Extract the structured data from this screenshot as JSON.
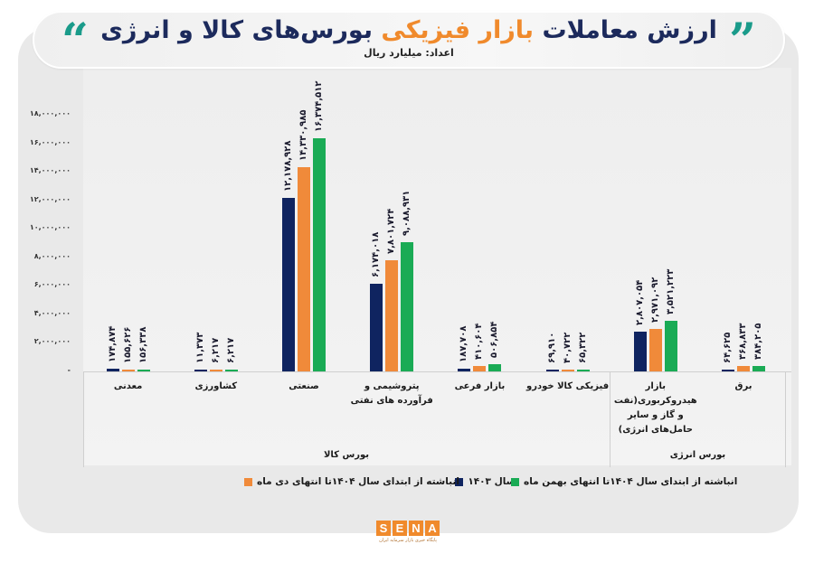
{
  "header": {
    "title_part1": "ارزش معاملات ",
    "title_highlight": "بازار فیزیکی",
    "title_part2": " بورس‌های کالا و انرژی",
    "subtitle": "اعداد: میلیارد ریال",
    "quote_open": "“",
    "quote_close": "”"
  },
  "colors": {
    "series_1403": "#0f2460",
    "series_dey": "#f08a3a",
    "series_bahman": "#1aab55",
    "title": "#1c2a5c",
    "highlight": "#f08a2c",
    "quote": "#1a9b8a"
  },
  "logo": {
    "letters": [
      "S",
      "E",
      "N",
      "A"
    ],
    "tagline": "پایگاه خبری بازار سرمایه ایران"
  },
  "chart_data": {
    "type": "bar",
    "title": "ارزش معاملات بازار فیزیکی بورس‌های کالا و انرژی",
    "subtitle": "اعداد: میلیارد ریال",
    "xlabel": "",
    "ylabel": "میلیارد ریال",
    "ylim": [
      0,
      18000000
    ],
    "yticks": [
      "-",
      "۲,۰۰۰,۰۰۰",
      "۴,۰۰۰,۰۰۰",
      "۶,۰۰۰,۰۰۰",
      "۸,۰۰۰,۰۰۰",
      "۱۰,۰۰۰,۰۰۰",
      "۱۲,۰۰۰,۰۰۰",
      "۱۴,۰۰۰,۰۰۰",
      "۱۶,۰۰۰,۰۰۰",
      "۱۸,۰۰۰,۰۰۰"
    ],
    "grid": false,
    "legend_position": "bottom",
    "categories": [
      "معدنی",
      "کشاورزی",
      "صنعتی",
      "پتروشیمی و فرآورده های نفتی",
      "بازار فرعی",
      "فیزیکی کالا خودرو",
      "بازار هیدروکربوری(نفت و گاز و سایر حامل‌های انرژی)",
      "برق"
    ],
    "category_groups": [
      {
        "name": "بورس کالا",
        "categories": [
          "معدنی",
          "کشاورزی",
          "صنعتی",
          "پتروشیمی و فرآورده های نفتی",
          "بازار فرعی",
          "فیزیکی کالا خودرو"
        ]
      },
      {
        "name": "بورس انرژی",
        "categories": [
          "بازار هیدروکربوری(نفت و گاز و سایر حامل‌های انرژی)",
          "برق"
        ]
      }
    ],
    "series": [
      {
        "name": "سال ۱۴۰۳",
        "color": "#0f2460",
        "values": [
          174874,
          11373,
          12178928,
          6174018,
          187708,
          69910,
          2807054,
          64625
        ],
        "labels": [
          "۱۷۴,۸۷۴",
          "۱۱,۳۷۳",
          "۱۲,۱۷۸,۹۲۸",
          "۶,۱۷۴,۰۱۸",
          "۱۸۷,۷۰۸",
          "۶۹,۹۱۰",
          "۲,۸۰۷,۰۵۴",
          "۶۴,۶۲۵"
        ]
      },
      {
        "name": "انباشته از ابتدای سال ۱۴۰۴تا انتهای دی ماه",
        "color": "#f08a3a",
        "values": [
          155626,
          6217,
          14330985,
          7801724,
          410604,
          40722,
          2971092,
          368833
        ],
        "labels": [
          "۱۵۵,۶۲۶",
          "۶,۲۱۷",
          "۱۴,۳۳۰,۹۸۵",
          "۷,۸۰۱,۷۲۴",
          "۴۱۰,۶۰۴",
          "۴۰,۷۲۲",
          "۲,۹۷۱,۰۹۲",
          "۳۶۸,۸۳۳"
        ]
      },
      {
        "name": "انباشته از ابتدای سال ۱۴۰۴تا انتهای بهمن ماه",
        "color": "#1aab55",
        "values": [
          156338,
          6217,
          16374512,
          9088931,
          506854,
          65322,
          3521223,
          384205
        ],
        "labels": [
          "۱۵۶,۳۳۸",
          "۶,۲۱۷",
          "۱۶,۳۷۴,۵۱۲",
          "۹,۰۸۸,۹۳۱",
          "۵۰۶,۸۵۴",
          "۶۵,۳۲۲",
          "۳,۵۲۱,۲۲۳",
          "۳۸۴,۲۰۵"
        ]
      }
    ]
  }
}
